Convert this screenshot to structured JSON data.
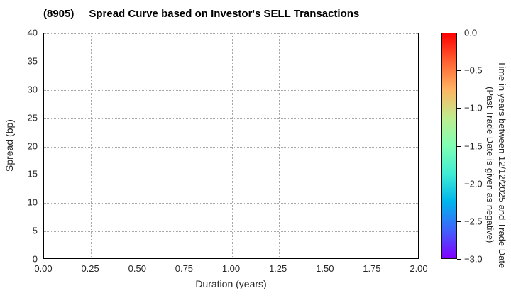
{
  "chart_data": {
    "type": "scatter",
    "title_code": "(8905)",
    "title_text": "Spread Curve based on Investor's SELL Transactions",
    "xlabel": "Duration (years)",
    "ylabel": "Spread (bp)",
    "xlim": [
      0.0,
      2.0
    ],
    "ylim": [
      0,
      40
    ],
    "xticks": [
      "0.00",
      "0.25",
      "0.50",
      "0.75",
      "1.00",
      "1.25",
      "1.50",
      "1.75",
      "2.00"
    ],
    "yticks": [
      "0",
      "5",
      "10",
      "15",
      "20",
      "25",
      "30",
      "35",
      "40"
    ],
    "grid": "dotted",
    "points": [],
    "colorbar": {
      "label_line1": "Time in years between 12/12/2025 and Trade Date",
      "label_line2": "(Past Trade Date is given as negative)",
      "ticks": [
        "0.0",
        "−0.5",
        "−1.0",
        "−1.5",
        "−2.0",
        "−2.5",
        "−3.0"
      ],
      "range": [
        0.0,
        -3.0
      ],
      "colormap": "rainbow",
      "gradient_stops": [
        "#ff0000",
        "#ff6232",
        "#ffb462",
        "#bfec8e",
        "#80ffb4",
        "#40ecd4",
        "#00b4ec",
        "#4062fa",
        "#8000ff"
      ]
    }
  }
}
